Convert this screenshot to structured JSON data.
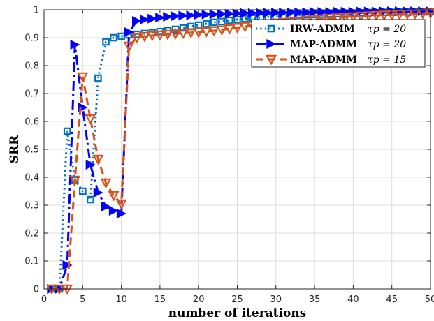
{
  "chart_data": {
    "type": "line",
    "title": "",
    "xlabel": "number of iterations",
    "ylabel": "SRR",
    "xlim": [
      0,
      50
    ],
    "ylim": [
      0,
      1
    ],
    "xticks": [
      "0",
      "5",
      "10",
      "15",
      "20",
      "25",
      "30",
      "35",
      "40",
      "45",
      "50"
    ],
    "yticks": [
      "0",
      "0.1",
      "0.2",
      "0.3",
      "0.4",
      "0.5",
      "0.6",
      "0.7",
      "0.8",
      "0.9",
      "1"
    ],
    "grid": true,
    "legend_position": "top-right",
    "series": [
      {
        "name": "IRW-ADMM",
        "name_suffix": "τp = 20",
        "color": "#0072BD",
        "line_style": "dotted",
        "marker": "square",
        "x": [
          1,
          2,
          3,
          4,
          5,
          6,
          7,
          8,
          9,
          10,
          11,
          12,
          13,
          14,
          15,
          16,
          17,
          18,
          19,
          20,
          21,
          22,
          23,
          24,
          25,
          26,
          27,
          28,
          29,
          30,
          31,
          32,
          33,
          34,
          35,
          36,
          37,
          38,
          39,
          40,
          41,
          42,
          43,
          44,
          45,
          46,
          47,
          48,
          49,
          50
        ],
        "values": [
          0,
          0,
          0.565,
          0.39,
          0.35,
          0.32,
          0.755,
          0.885,
          0.9,
          0.905,
          0.91,
          0.912,
          0.915,
          0.918,
          0.922,
          0.926,
          0.93,
          0.935,
          0.94,
          0.945,
          0.95,
          0.955,
          0.958,
          0.962,
          0.965,
          0.968,
          0.97,
          0.972,
          0.974,
          0.976,
          0.978,
          0.98,
          0.981,
          0.982,
          0.983,
          0.984,
          0.985,
          0.986,
          0.987,
          0.988,
          0.989,
          0.99,
          0.99,
          0.991,
          0.991,
          0.992,
          0.992,
          0.993,
          0.993,
          0.994
        ]
      },
      {
        "name": "MAP-ADMM",
        "name_suffix": "τp = 20",
        "color": "#0000FF",
        "line_style": "dash-dot",
        "marker": "triangle-right",
        "x": [
          1,
          2,
          3,
          4,
          5,
          6,
          7,
          8,
          9,
          10,
          11,
          12,
          13,
          14,
          15,
          16,
          17,
          18,
          19,
          20,
          21,
          22,
          23,
          24,
          25,
          26,
          27,
          28,
          29,
          30,
          31,
          32,
          33,
          34,
          35,
          36,
          37,
          38,
          39,
          40,
          41,
          42,
          43,
          44,
          45,
          46,
          47,
          48,
          49,
          50
        ],
        "values": [
          0,
          0,
          0.085,
          0.875,
          0.65,
          0.445,
          0.345,
          0.295,
          0.28,
          0.27,
          0.92,
          0.96,
          0.965,
          0.968,
          0.972,
          0.975,
          0.977,
          0.979,
          0.98,
          0.982,
          0.983,
          0.984,
          0.985,
          0.986,
          0.987,
          0.988,
          0.988,
          0.989,
          0.989,
          0.99,
          0.99,
          0.991,
          0.991,
          0.991,
          0.992,
          0.992,
          0.992,
          0.993,
          0.993,
          0.993,
          0.994,
          0.994,
          0.994,
          0.994,
          0.995,
          0.995,
          0.995,
          0.995,
          0.995,
          0.995
        ]
      },
      {
        "name": "MAP-ADMM",
        "name_suffix": "τp = 15",
        "color": "#D95319",
        "line_style": "dashed",
        "marker": "triangle-down",
        "x": [
          1,
          2,
          3,
          4,
          5,
          6,
          7,
          8,
          9,
          10,
          11,
          12,
          13,
          14,
          15,
          16,
          17,
          18,
          19,
          20,
          21,
          22,
          23,
          24,
          25,
          26,
          27,
          28,
          29,
          30,
          31,
          32,
          33,
          34,
          35,
          36,
          37,
          38,
          39,
          40,
          41,
          42,
          43,
          44,
          45,
          46,
          47,
          48,
          49,
          50
        ],
        "values": [
          0,
          0,
          0,
          0.39,
          0.76,
          0.61,
          0.465,
          0.38,
          0.335,
          0.305,
          0.87,
          0.9,
          0.905,
          0.908,
          0.91,
          0.912,
          0.914,
          0.916,
          0.918,
          0.92,
          0.922,
          0.925,
          0.928,
          0.932,
          0.936,
          0.94,
          0.943,
          0.946,
          0.949,
          0.952,
          0.955,
          0.958,
          0.96,
          0.963,
          0.965,
          0.967,
          0.969,
          0.971,
          0.973,
          0.975,
          0.977,
          0.978,
          0.98,
          0.981,
          0.982,
          0.984,
          0.985,
          0.986,
          0.987,
          0.988
        ]
      }
    ]
  }
}
